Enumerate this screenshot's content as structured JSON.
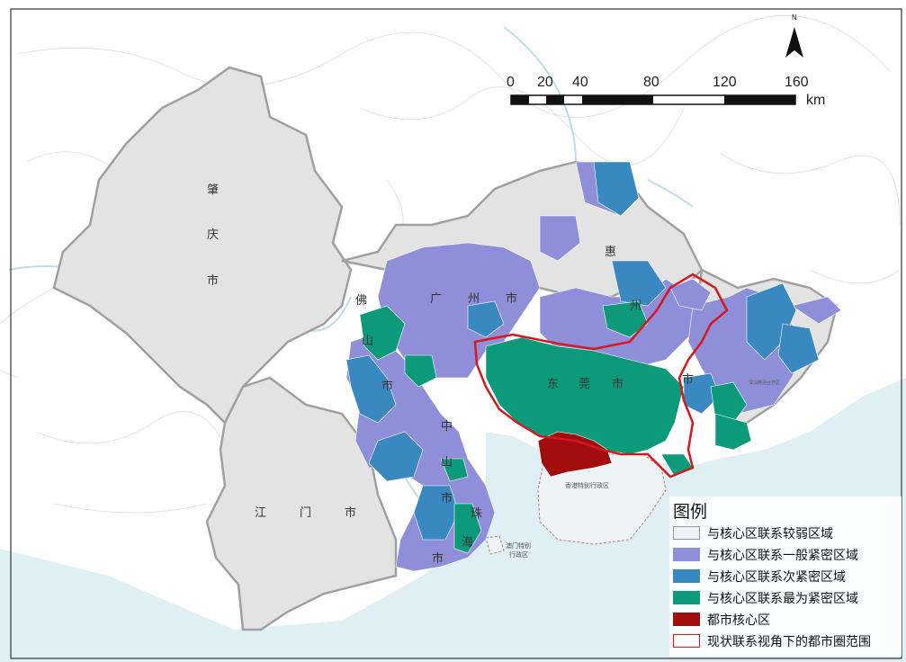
{
  "colors": {
    "sea": "#dfeff4",
    "land": "#ffffff",
    "region_gray": "#e3e3e3",
    "weak": "#ecf2f7",
    "general": "#8e8fd8",
    "second": "#3a88c0",
    "closest": "#0c9a7b",
    "core": "#a30c0c",
    "circle_border": "#d4191f",
    "border": "#a0a0a0"
  },
  "north_arrow": {
    "label": "N"
  },
  "scale_bar": {
    "ticks": [
      "0",
      "20",
      "40",
      "80",
      "120",
      "160"
    ],
    "unit": "km"
  },
  "place_labels": {
    "zhaoqing": [
      "肇",
      "庆",
      "市"
    ],
    "foshan": [
      "佛",
      "山",
      "市"
    ],
    "guangzhou": [
      "广",
      "州",
      "市"
    ],
    "huizhou": [
      "惠",
      "州",
      "市"
    ],
    "dongguan": [
      "东",
      "莞",
      "市"
    ],
    "zhongshan": [
      "中",
      "山",
      "市"
    ],
    "jiangmen": [
      "江",
      "门",
      "市"
    ],
    "zhuhai": [
      "珠",
      "海",
      "市"
    ],
    "shenzhen_mark": "市",
    "hongkong": "香港特别行政区",
    "macau": [
      "澳门特别",
      "行政区"
    ],
    "shenshan": "深汕特别合作区"
  },
  "legend": {
    "title": "图例",
    "items": [
      {
        "label": "与核心区联系较弱区域",
        "color": "#ecf2f7",
        "border": "#8a9aa8"
      },
      {
        "label": "与核心区联系一般紧密区域",
        "color": "#8e8fd8",
        "border": "#8e8fd8"
      },
      {
        "label": "与核心区联系次紧密区域",
        "color": "#3a88c0",
        "border": "#3a88c0"
      },
      {
        "label": "与核心区联系最为紧密区域",
        "color": "#0c9a7b",
        "border": "#0c9a7b"
      },
      {
        "label": "都市核心区",
        "color": "#a30c0c",
        "border": "#a30c0c"
      },
      {
        "label": "现状联系视角下的都市圈范围",
        "color": "#ffffff",
        "border": "#d4191f"
      }
    ]
  }
}
